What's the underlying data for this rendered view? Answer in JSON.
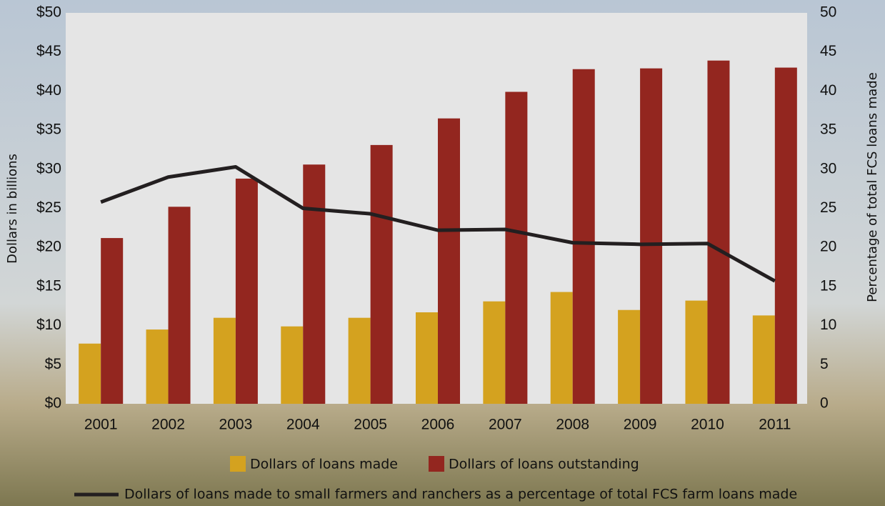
{
  "chart_data": {
    "type": "bar",
    "categories": [
      "2001",
      "2002",
      "2003",
      "2004",
      "2005",
      "2006",
      "2007",
      "2008",
      "2009",
      "2010",
      "2011"
    ],
    "y_label": "Dollars in billions",
    "y2_label": "Percentage of total FCS loans made",
    "ylim": [
      0,
      50
    ],
    "yticks": [
      {
        "value": 0,
        "label": "$0"
      },
      {
        "value": 5,
        "label": "$5"
      },
      {
        "value": 10,
        "label": "$10"
      },
      {
        "value": 15,
        "label": "$15"
      },
      {
        "value": 20,
        "label": "$20"
      },
      {
        "value": 25,
        "label": "$25"
      },
      {
        "value": 30,
        "label": "$30"
      },
      {
        "value": 35,
        "label": "$35"
      },
      {
        "value": 40,
        "label": "$40"
      },
      {
        "value": 45,
        "label": "$45"
      },
      {
        "value": 50,
        "label": "$50"
      }
    ],
    "y2lim": [
      0,
      50
    ],
    "y2ticks": [
      0,
      5,
      10,
      15,
      20,
      25,
      30,
      35,
      40,
      45,
      50
    ],
    "series": [
      {
        "name": "Dollars of loans made",
        "type": "bar",
        "color": "#d4a21f",
        "values": [
          7.7,
          9.5,
          11.0,
          9.9,
          11.0,
          11.7,
          13.1,
          14.3,
          12.0,
          13.2,
          11.3
        ]
      },
      {
        "name": "Dollars of loans outstanding",
        "type": "bar",
        "color": "#93261f",
        "values": [
          21.2,
          25.2,
          28.8,
          30.6,
          33.1,
          36.5,
          39.9,
          42.8,
          42.9,
          43.9,
          43.0
        ]
      },
      {
        "name": "Dollars of loans made to small farmers and ranchers as a percentage of total FCS farm loans made",
        "type": "line",
        "axis": "y2",
        "color": "#231f20",
        "values": [
          25.8,
          29.0,
          30.3,
          25.0,
          24.3,
          22.2,
          22.3,
          20.6,
          20.4,
          20.5,
          15.7
        ]
      }
    ]
  }
}
